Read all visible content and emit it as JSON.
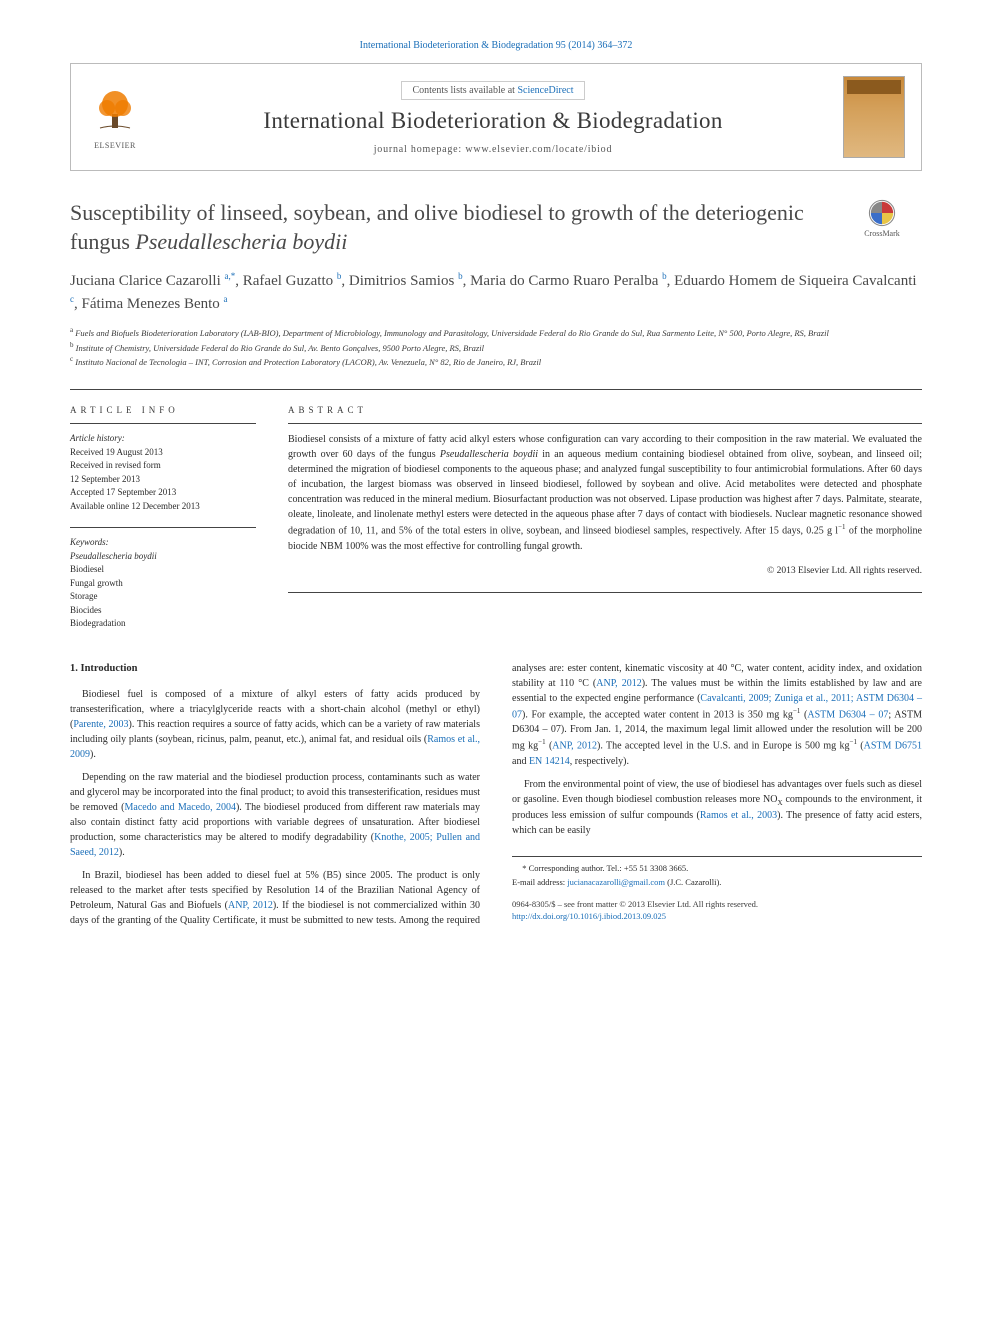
{
  "top_citation": "International Biodeterioration & Biodegradation 95 (2014) 364–372",
  "masthead": {
    "contents_prefix": "Contents lists available at ",
    "contents_link": "ScienceDirect",
    "journal_name": "International Biodeterioration & Biodegradation",
    "homepage_prefix": "journal homepage: ",
    "homepage_url": "www.elsevier.com/locate/ibiod",
    "publisher_brand": "ELSEVIER"
  },
  "crossmark_label": "CrossMark",
  "title_plain": "Susceptibility of linseed, soybean, and olive biodiesel to growth of the deteriogenic fungus ",
  "title_italic": "Pseudallescheria boydii",
  "authors_html": "Juciana Clarice Cazarolli <sup>a,*</sup>, Rafael Guzatto <sup>b</sup>, Dimitrios Samios <sup>b</sup>, Maria do Carmo Ruaro Peralba <sup>b</sup>, Eduardo Homem de Siqueira Cavalcanti <sup>c</sup>, Fátima Menezes Bento <sup>a</sup>",
  "affiliations": [
    "a Fuels and Biofuels Biodeterioration Laboratory (LAB-BIO), Department of Microbiology, Immunology and Parasitology, Universidade Federal do Rio Grande do Sul, Rua Sarmento Leite, N° 500, Porto Alegre, RS, Brazil",
    "b Institute of Chemistry, Universidade Federal do Rio Grande do Sul, Av. Bento Gonçalves, 9500 Porto Alegre, RS, Brazil",
    "c Instituto Nacional de Tecnologia – INT, Corrosion and Protection Laboratory (LACOR), Av. Venezuela, N° 82, Rio de Janeiro, RJ, Brazil"
  ],
  "article_info": {
    "heading": "ARTICLE INFO",
    "history_label": "Article history:",
    "history": [
      "Received 19 August 2013",
      "Received in revised form",
      "12 September 2013",
      "Accepted 17 September 2013",
      "Available online 12 December 2013"
    ],
    "keywords_label": "Keywords:",
    "keywords": [
      {
        "text": "Pseudallescheria boydii",
        "italic": true
      },
      {
        "text": "Biodiesel",
        "italic": false
      },
      {
        "text": "Fungal growth",
        "italic": false
      },
      {
        "text": "Storage",
        "italic": false
      },
      {
        "text": "Biocides",
        "italic": false
      },
      {
        "text": "Biodegradation",
        "italic": false
      }
    ]
  },
  "abstract": {
    "heading": "ABSTRACT",
    "text": "Biodiesel consists of a mixture of fatty acid alkyl esters whose configuration can vary according to their composition in the raw material. We evaluated the growth over 60 days of the fungus Pseudallescheria boydii in an aqueous medium containing biodiesel obtained from olive, soybean, and linseed oil; determined the migration of biodiesel components to the aqueous phase; and analyzed fungal susceptibility to four antimicrobial formulations. After 60 days of incubation, the largest biomass was observed in linseed biodiesel, followed by soybean and olive. Acid metabolites were detected and phosphate concentration was reduced in the mineral medium. Biosurfactant production was not observed. Lipase production was highest after 7 days. Palmitate, stearate, oleate, linoleate, and linolenate methyl esters were detected in the aqueous phase after 7 days of contact with biodiesels. Nuclear magnetic resonance showed degradation of 10, 11, and 5% of the total esters in olive, soybean, and linseed biodiesel samples, respectively. After 15 days, 0.25 g l⁻¹ of the morpholine biocide NBM 100% was the most effective for controlling fungal growth.",
    "copyright": "© 2013 Elsevier Ltd. All rights reserved."
  },
  "body": {
    "section_heading": "1. Introduction",
    "paragraphs": [
      "Biodiesel fuel is composed of a mixture of alkyl esters of fatty acids produced by transesterification, where a triacylglyceride reacts with a short-chain alcohol (methyl or ethyl) (|Parente, 2003|). This reaction requires a source of fatty acids, which can be a variety of raw materials including oily plants (soybean, ricinus, palm, peanut, etc.), animal fat, and residual oils (|Ramos et al., 2009|).",
      "Depending on the raw material and the biodiesel production process, contaminants such as water and glycerol may be incorporated into the final product; to avoid this transesterification, residues must be removed (|Macedo and Macedo, 2004|). The biodiesel produced from different raw materials may also contain distinct fatty acid proportions with variable degrees of unsaturation. After biodiesel production, some characteristics may be altered to modify degradability (|Knothe, 2005; Pullen and Saeed, 2012|).",
      "In Brazil, biodiesel has been added to diesel fuel at 5% (B5) since 2005. The product is only released to the market after tests specified by Resolution 14 of the Brazilian National Agency of Petroleum, Natural Gas and Biofuels (|ANP, 2012|). If the biodiesel is not commercialized within 30 days of the granting of the Quality Certificate, it must be submitted to new tests. Among the required analyses are: ester content, kinematic viscosity at 40 °C, water content, acidity index, and oxidation stability at 110 °C (|ANP, 2012|). The values must be within the limits established by law and are essential to the expected engine performance (|Cavalcanti, 2009; Zuniga et al., 2011; ASTM D6304 – 07|). For example, the accepted water content in 2013 is 350 mg kg⁻¹ (|ASTM D6304 – 07|; ASTM D6304 – 07). From Jan. 1, 2014, the maximum legal limit allowed under the resolution will be 200 mg kg⁻¹ (|ANP, 2012|). The accepted level in the U.S. and in Europe is 500 mg kg⁻¹ (|ASTM D6751| and |EN 14214|, respectively).",
      "From the environmental point of view, the use of biodiesel has advantages over fuels such as diesel or gasoline. Even though biodiesel combustion releases more NOₓ compounds to the environment, it produces less emission of sulfur compounds (|Ramos et al., 2003|). The presence of fatty acid esters, which can be easily"
    ]
  },
  "footnotes": {
    "corr": "* Corresponding author. Tel.: +55 51 3308 3665.",
    "email_label": "E-mail address: ",
    "email": "jucianacazarolli@gmail.com",
    "email_person": " (J.C. Cazarolli)."
  },
  "footer": {
    "issn_line": "0964-8305/$ – see front matter © 2013 Elsevier Ltd. All rights reserved.",
    "doi": "http://dx.doi.org/10.1016/j.ibiod.2013.09.025"
  },
  "colors": {
    "link": "#1a6eb8",
    "text": "#2a2a2a",
    "rule": "#444444",
    "cover_top": "#c98a3a",
    "cover_bottom": "#e0b880",
    "elsevier_orange": "#ef7c00"
  }
}
